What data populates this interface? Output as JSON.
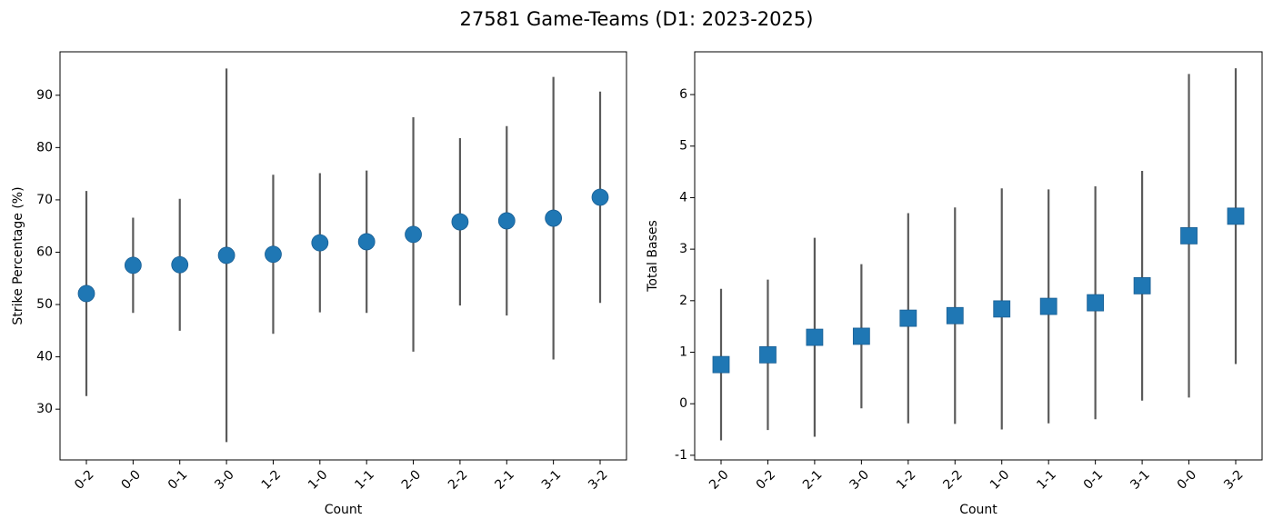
{
  "title": "27581 Game-Teams (D1: 2023-2025)",
  "chart_data": [
    {
      "type": "errorbar",
      "marker": "circle",
      "color": "#1f77b4",
      "error_color": "#5a5a5a",
      "xlabel": "Count",
      "ylabel": "Strike Percentage (%)",
      "categories": [
        "0-2",
        "0-0",
        "0-1",
        "3-0",
        "1-2",
        "1-0",
        "1-1",
        "2-0",
        "2-2",
        "2-1",
        "3-1",
        "3-2"
      ],
      "values": [
        52.1,
        57.5,
        57.6,
        59.4,
        59.6,
        61.8,
        62.0,
        63.4,
        65.8,
        66.0,
        66.5,
        70.5
      ],
      "errors": [
        19.6,
        9.1,
        12.6,
        35.7,
        15.2,
        13.3,
        13.6,
        22.4,
        16.0,
        18.1,
        27.0,
        20.2
      ],
      "ylim": [
        20.3,
        98.3
      ],
      "yticks": [
        30,
        40,
        50,
        60,
        70,
        80,
        90
      ]
    },
    {
      "type": "errorbar",
      "marker": "square",
      "color": "#1f77b4",
      "error_color": "#5a5a5a",
      "xlabel": "Count",
      "ylabel": "Total Bases",
      "categories": [
        "2-0",
        "0-2",
        "2-1",
        "3-0",
        "1-2",
        "2-2",
        "1-0",
        "1-1",
        "0-1",
        "3-1",
        "0-0",
        "3-2"
      ],
      "values": [
        0.76,
        0.95,
        1.29,
        1.31,
        1.66,
        1.71,
        1.84,
        1.89,
        1.96,
        2.29,
        3.26,
        3.64
      ],
      "errors": [
        1.47,
        1.46,
        1.93,
        1.4,
        2.04,
        2.1,
        2.34,
        2.27,
        2.26,
        2.23,
        3.14,
        2.87
      ],
      "ylim": [
        -1.09,
        6.83
      ],
      "yticks": [
        -1,
        0,
        1,
        2,
        3,
        4,
        5,
        6
      ]
    }
  ]
}
